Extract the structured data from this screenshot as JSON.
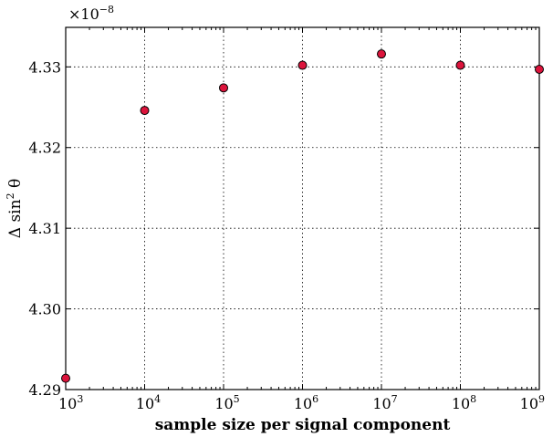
{
  "chart_data": {
    "type": "scatter",
    "xlabel": "sample size per signal component",
    "ylabel": "Δ sin² θ",
    "ylabel_parts": {
      "base": "Δ sin",
      "sup": "2",
      "tail": " θ"
    },
    "x_scale": "log",
    "x": [
      1000,
      10000,
      100000,
      1000000,
      10000000,
      100000000,
      1000000000
    ],
    "y": [
      4.2914,
      4.3246,
      4.3274,
      4.3302,
      4.3316,
      4.3302,
      4.3297
    ],
    "xlim": [
      1000,
      1000000000
    ],
    "ylim": [
      4.29,
      4.3349
    ],
    "y_multiplier": {
      "base": "×10",
      "exp": "−8"
    },
    "x_ticks": [
      {
        "value": 1000,
        "base": "10",
        "exp": "3"
      },
      {
        "value": 10000,
        "base": "10",
        "exp": "4"
      },
      {
        "value": 100000,
        "base": "10",
        "exp": "5"
      },
      {
        "value": 1000000,
        "base": "10",
        "exp": "6"
      },
      {
        "value": 10000000,
        "base": "10",
        "exp": "7"
      },
      {
        "value": 100000000,
        "base": "10",
        "exp": "8"
      },
      {
        "value": 1000000000,
        "base": "10",
        "exp": "9"
      }
    ],
    "y_ticks": [
      {
        "value": 4.29,
        "label": "4.29"
      },
      {
        "value": 4.3,
        "label": "4.30"
      },
      {
        "value": 4.31,
        "label": "4.31"
      },
      {
        "value": 4.32,
        "label": "4.32"
      },
      {
        "value": 4.33,
        "label": "4.33"
      }
    ],
    "grid": true,
    "marker_color": "#dc143c"
  }
}
